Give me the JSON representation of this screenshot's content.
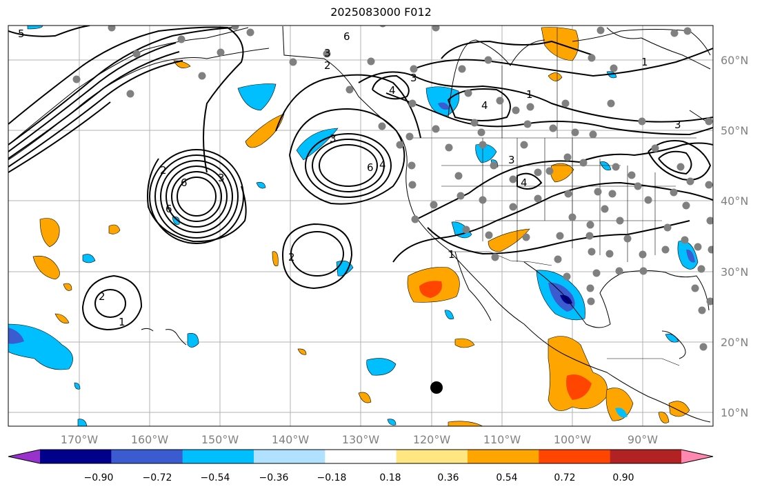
{
  "title": "2025083000 F012",
  "lon_labels": [
    "170°W",
    "160°W",
    "150°W",
    "140°W",
    "130°W",
    "120°W",
    "110°W",
    "100°W",
    "90°W"
  ],
  "lat_labels": [
    "60°N",
    "50°N",
    "40°N",
    "30°N",
    "20°N",
    "10°N"
  ],
  "colorbar": {
    "ticks": [
      "−0.90",
      "−0.72",
      "−0.54",
      "−0.36",
      "−0.18",
      "0.18",
      "0.36",
      "0.54",
      "0.72",
      "0.90"
    ],
    "colors": [
      "#9932cc",
      "#00008b",
      "#3b5bd0",
      "#00bfff",
      "#b0e2ff",
      "#ffffff",
      "#ffe680",
      "#ffa500",
      "#ff4500",
      "#b22222",
      "#ff88b0"
    ]
  },
  "contour_labels": [
    "5",
    "6",
    "3",
    "2",
    "6",
    "3",
    "4",
    "4",
    "1",
    "3",
    "3",
    "3",
    "6",
    "4",
    "2",
    "6",
    "3",
    "4",
    "2",
    "1",
    "2",
    "1",
    "1"
  ]
}
